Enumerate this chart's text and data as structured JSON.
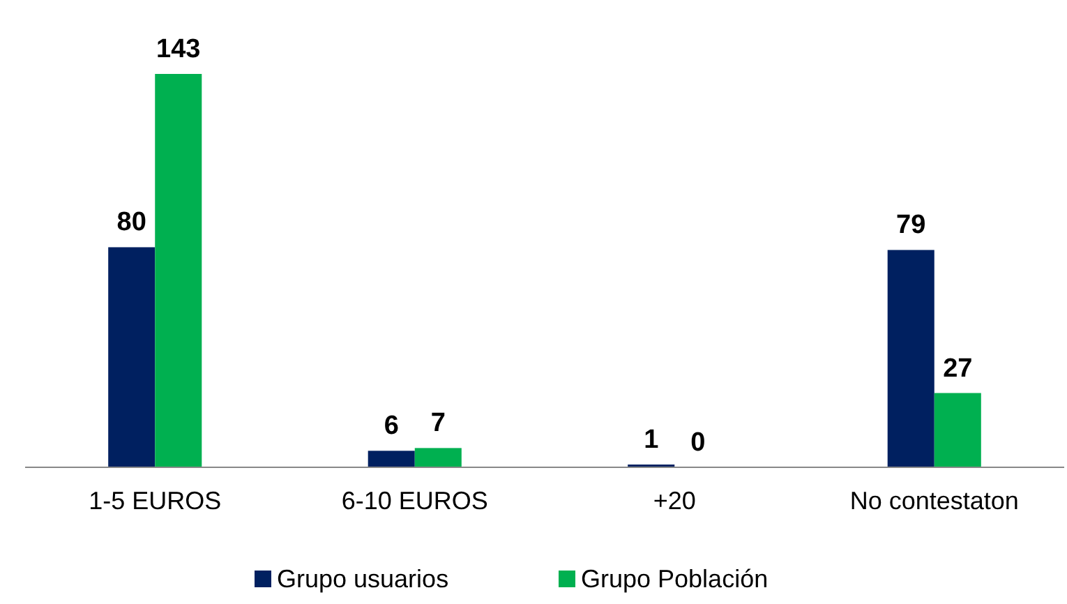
{
  "chart_data": {
    "type": "bar",
    "categories": [
      "1-5 EUROS",
      "6-10 EUROS",
      "+20",
      "No contestaton"
    ],
    "series": [
      {
        "name": "Grupo usuarios",
        "color": "#002060",
        "values": [
          80,
          6,
          1,
          79
        ]
      },
      {
        "name": "Grupo Población",
        "color": "#00b050",
        "values": [
          143,
          7,
          0,
          27
        ]
      }
    ],
    "data_labels": true,
    "legend": "bottom"
  }
}
